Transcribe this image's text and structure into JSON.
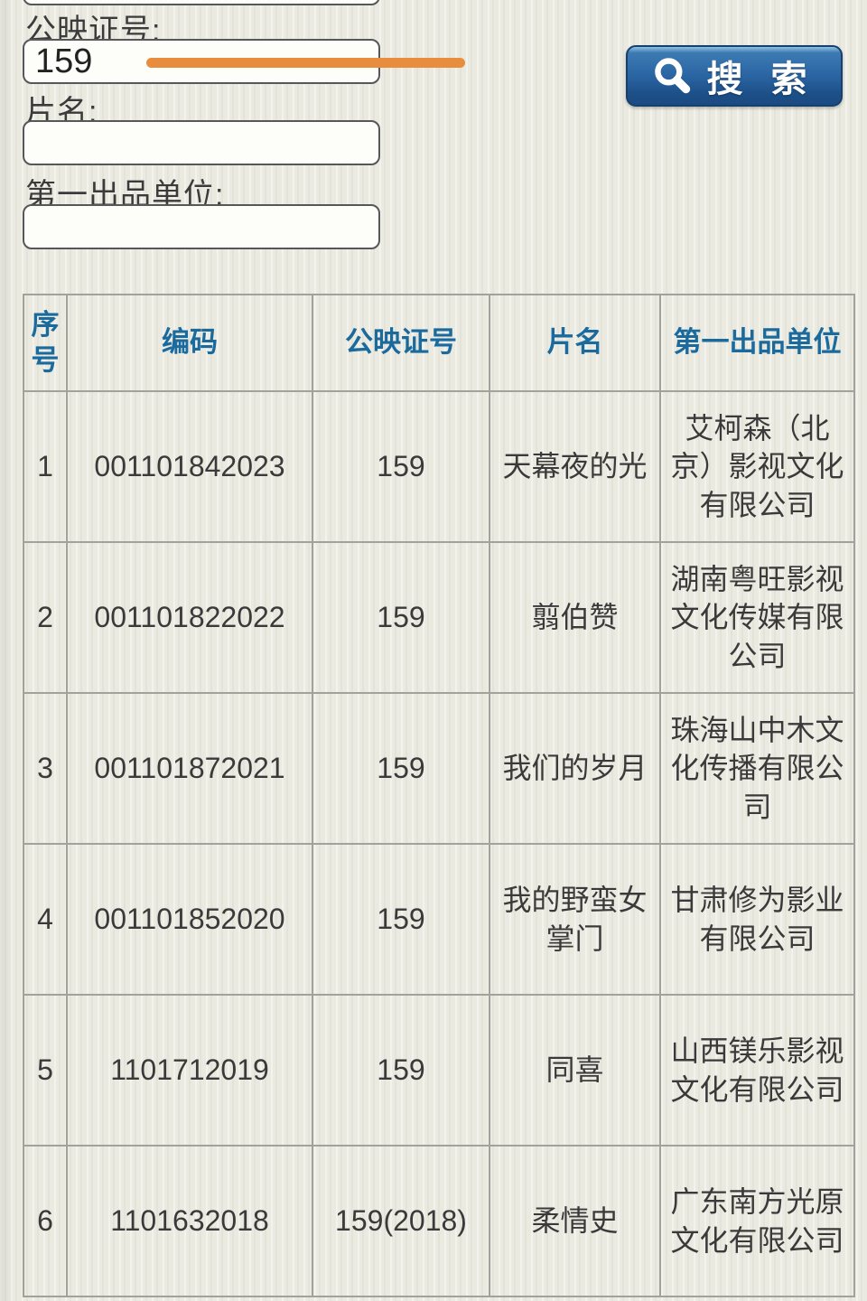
{
  "form": {
    "fields": [
      {
        "label": "公映证号:",
        "value": "159",
        "placeholder": ""
      },
      {
        "label": "片名:",
        "value": "",
        "placeholder": ""
      },
      {
        "label": "第一出品单位:",
        "value": "",
        "placeholder": ""
      }
    ],
    "search_button": {
      "label": "搜 索",
      "icon": "magnifier"
    }
  },
  "annotation": {
    "shape": "horizontal-underline",
    "color": "#e88d3e"
  },
  "table": {
    "headers": [
      "序号",
      "编码",
      "公映证号",
      "片名",
      "第一出品单位"
    ],
    "rows": [
      [
        "1",
        "001101842023",
        "159",
        "天幕夜的光",
        "艾柯森（北京）影视文化有限公司"
      ],
      [
        "2",
        "001101822022",
        "159",
        "翦伯赞",
        "湖南粤旺影视文化传媒有限公司"
      ],
      [
        "3",
        "001101872021",
        "159",
        "我们的岁月",
        "珠海山中木文化传播有限公司"
      ],
      [
        "4",
        "001101852020",
        "159",
        "我的野蛮女掌门",
        "甘肃修为影业有限公司"
      ],
      [
        "5",
        "1101712019",
        "159",
        "同喜",
        "山西镁乐影视文化有限公司"
      ],
      [
        "6",
        "1101632018",
        "159(2018)",
        "柔情史",
        "广东南方光原文化有限公司"
      ]
    ]
  },
  "colors": {
    "accent_orange": "#e88d3e",
    "button_blue": "#2b66a4",
    "header_blue": "#1b6a9e",
    "background": "#ebeae1"
  }
}
